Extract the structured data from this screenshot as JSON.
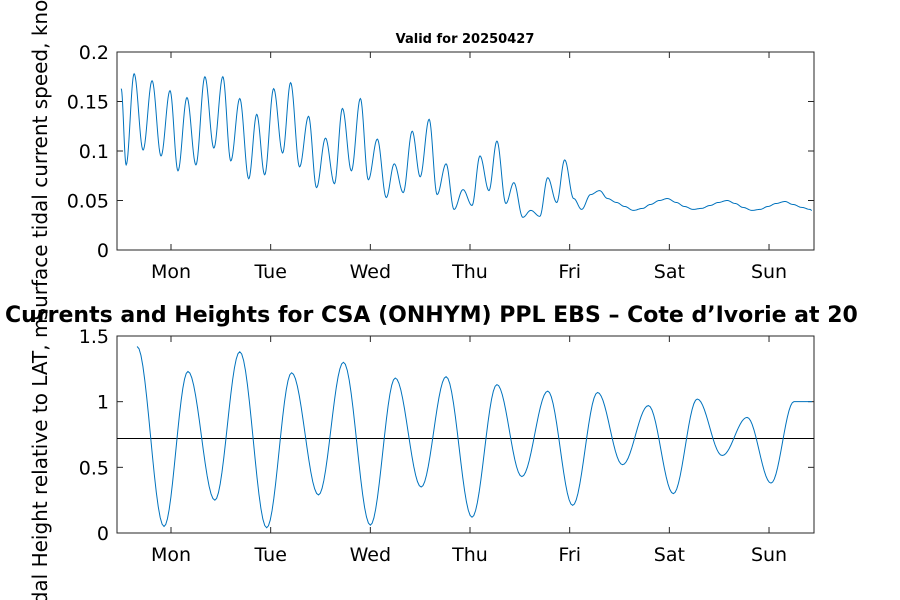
{
  "chart_data": [
    {
      "type": "line",
      "title": "Valid for 20250427",
      "ylabel": "Surface tidal current speed, knots",
      "xlabel": "",
      "x_ticks": [
        "Mon",
        "Tue",
        "Wed",
        "Thu",
        "Fri",
        "Sat",
        "Sun"
      ],
      "ylim": [
        0,
        0.2
      ],
      "y_ticks": [
        "0",
        "0.05",
        "0.1",
        "0.15",
        "0.2"
      ],
      "grid": false,
      "series": [
        {
          "color": "#0072bd",
          "x_days": [
            -0.57,
            -0.5,
            -0.45,
            -0.37,
            -0.28,
            -0.19,
            -0.1,
            -0.01,
            0.07,
            0.16,
            0.25,
            0.34,
            0.43,
            0.52,
            0.6,
            0.69,
            0.78,
            0.86,
            0.94,
            1.03,
            1.12,
            1.2,
            1.29,
            1.38,
            1.46,
            1.55,
            1.64,
            1.72,
            1.81,
            1.9,
            1.98,
            2.07,
            2.16,
            2.24,
            2.33,
            2.42,
            2.5,
            2.59,
            2.67,
            2.76,
            2.84,
            2.93,
            3.02,
            3.1,
            3.19,
            3.27,
            3.36,
            3.44,
            3.53,
            3.61,
            3.7,
            3.78,
            3.87,
            3.95,
            4.04,
            4.12,
            4.21,
            4.3,
            4.38,
            4.47,
            4.55,
            4.64,
            4.73,
            4.81,
            4.9,
            4.98,
            5.07,
            5.15,
            5.24,
            5.32,
            5.41,
            5.49,
            5.58,
            5.66,
            5.74,
            5.83,
            5.91,
            5.99,
            6.07,
            6.16,
            6.24,
            6.33,
            6.41,
            6.5,
            6.43
          ],
          "values": [
            0.132,
            0.163,
            0.086,
            0.178,
            0.101,
            0.171,
            0.095,
            0.161,
            0.08,
            0.154,
            0.086,
            0.175,
            0.103,
            0.175,
            0.09,
            0.153,
            0.072,
            0.137,
            0.076,
            0.163,
            0.098,
            0.169,
            0.084,
            0.135,
            0.063,
            0.113,
            0.067,
            0.143,
            0.08,
            0.153,
            0.071,
            0.112,
            0.053,
            0.087,
            0.058,
            0.12,
            0.074,
            0.132,
            0.056,
            0.087,
            0.041,
            0.061,
            0.045,
            0.095,
            0.06,
            0.11,
            0.047,
            0.068,
            0.033,
            0.04,
            0.034,
            0.073,
            0.048,
            0.091,
            0.052,
            0.041,
            0.056,
            0.06,
            0.052,
            0.048,
            0.044,
            0.04,
            0.042,
            0.046,
            0.05,
            0.052,
            0.048,
            0.044,
            0.041,
            0.042,
            0.045,
            0.048,
            0.05,
            0.047,
            0.043,
            0.04,
            0.041,
            0.044,
            0.047,
            0.049,
            0.046,
            0.043,
            0.041,
            0.042,
            0.04
          ]
        }
      ]
    },
    {
      "type": "line",
      "title": "Currents and Heights for CSA (ONHYM) PPL EBS  – Cote d’Ivorie at 20",
      "ylabel": "Tidal Height relative to LAT, m",
      "xlabel": "",
      "x_ticks": [
        "Mon",
        "Tue",
        "Wed",
        "Thu",
        "Fri",
        "Sat",
        "Sun"
      ],
      "ylim": [
        0,
        1.5
      ],
      "y_ticks": [
        "0",
        "0.5",
        "1",
        "1.5"
      ],
      "grid": false,
      "reference_line": 0.72,
      "series": [
        {
          "color": "#0072bd",
          "x_days": [
            -0.57,
            -0.34,
            -0.07,
            0.17,
            0.44,
            0.69,
            0.96,
            1.21,
            1.48,
            1.73,
            2.0,
            2.25,
            2.51,
            2.76,
            3.02,
            3.27,
            3.52,
            3.78,
            4.03,
            4.28,
            4.53,
            4.79,
            5.04,
            5.28,
            5.53,
            5.78,
            6.02,
            6.25,
            6.43
          ],
          "values": [
            0.28,
            1.42,
            0.05,
            1.23,
            0.25,
            1.38,
            0.04,
            1.22,
            0.29,
            1.3,
            0.06,
            1.18,
            0.35,
            1.19,
            0.12,
            1.13,
            0.43,
            1.08,
            0.21,
            1.07,
            0.52,
            0.97,
            0.3,
            1.02,
            0.59,
            0.88,
            0.38,
            1.0,
            1.0
          ]
        }
      ]
    }
  ]
}
